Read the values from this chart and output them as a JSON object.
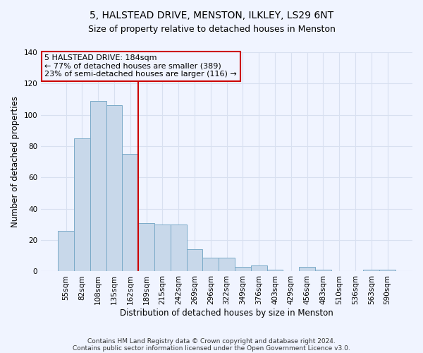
{
  "title": "5, HALSTEAD DRIVE, MENSTON, ILKLEY, LS29 6NT",
  "subtitle": "Size of property relative to detached houses in Menston",
  "xlabel": "Distribution of detached houses by size in Menston",
  "ylabel": "Number of detached properties",
  "categories": [
    "55sqm",
    "82sqm",
    "108sqm",
    "135sqm",
    "162sqm",
    "189sqm",
    "215sqm",
    "242sqm",
    "269sqm",
    "296sqm",
    "322sqm",
    "349sqm",
    "376sqm",
    "403sqm",
    "429sqm",
    "456sqm",
    "483sqm",
    "510sqm",
    "536sqm",
    "563sqm",
    "590sqm"
  ],
  "bar_heights": [
    26,
    85,
    109,
    106,
    75,
    31,
    30,
    30,
    14,
    9,
    9,
    3,
    4,
    1,
    0,
    3,
    1,
    0,
    0,
    1,
    1
  ],
  "bar_color": "#c8d8ea",
  "bar_edgecolor": "#7aaac8",
  "vline_color": "#cc0000",
  "annotation_title": "5 HALSTEAD DRIVE: 184sqm",
  "annotation_line1": "← 77% of detached houses are smaller (389)",
  "annotation_line2": "23% of semi-detached houses are larger (116) →",
  "annotation_box_edgecolor": "#cc0000",
  "ylim": [
    0,
    140
  ],
  "yticks": [
    0,
    20,
    40,
    60,
    80,
    100,
    120,
    140
  ],
  "footnote1": "Contains HM Land Registry data © Crown copyright and database right 2024.",
  "footnote2": "Contains public sector information licensed under the Open Government Licence v3.0.",
  "bg_color": "#f0f4ff",
  "grid_color": "#d8e0f0",
  "title_fontsize": 10,
  "subtitle_fontsize": 9,
  "xlabel_fontsize": 8.5,
  "ylabel_fontsize": 8.5,
  "tick_fontsize": 7.5,
  "annot_fontsize": 8
}
